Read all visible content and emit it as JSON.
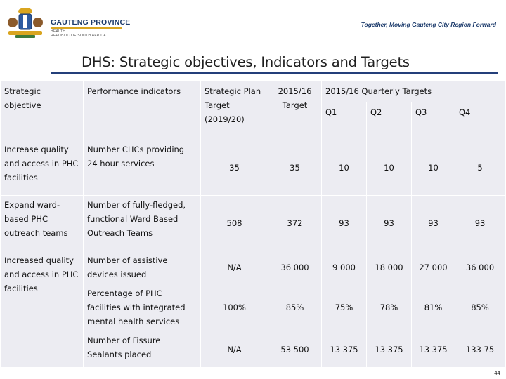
{
  "header": {
    "brand_name": "GAUTENG PROVINCE",
    "brand_sub1": "HEALTH",
    "brand_sub2": "REPUBLIC OF SOUTH AFRICA",
    "tagline": "Together, Moving Gauteng City Region Forward",
    "colors": {
      "brand_blue": "#1b3a6b",
      "gold": "#d9a520"
    }
  },
  "title": "DHS: Strategic objectives, Indicators and Targets",
  "table": {
    "headers": {
      "objective": "Strategic objective",
      "indicator": "Performance indicators",
      "plan_target": "Strategic Plan Target (2019/20)",
      "annual_target": "2015/16 Target",
      "quarterly": "2015/16 Quarterly Targets",
      "q1": "Q1",
      "q2": "Q2",
      "q3": "Q3",
      "q4": "Q4"
    },
    "rows": [
      {
        "objective": "Increase quality and access in PHC facilities",
        "indicator": "Number CHCs providing 24 hour services",
        "plan_target": "35",
        "annual_target": "35",
        "q1": "10",
        "q2": "10",
        "q3": "10",
        "q4": "5"
      },
      {
        "objective": "Expand ward-based PHC outreach teams",
        "indicator": "Number of fully-fledged, functional Ward Based Outreach Teams",
        "plan_target": "508",
        "annual_target": "372",
        "q1": "93",
        "q2": "93",
        "q3": "93",
        "q4": "93"
      },
      {
        "objective": "Increased quality and access in PHC facilities",
        "indicator": "Number of assistive devices issued",
        "plan_target": "N/A",
        "annual_target": "36 000",
        "q1": "9 000",
        "q2": "18 000",
        "q3": "27 000",
        "q4": "36 000"
      },
      {
        "objective": "",
        "indicator": "Percentage of PHC facilities with integrated mental health services",
        "plan_target": "100%",
        "annual_target": "85%",
        "q1": "75%",
        "q2": "78%",
        "q3": "81%",
        "q4": "85%"
      },
      {
        "objective": "",
        "indicator": "Number of Fissure Sealants placed",
        "plan_target": "N/A",
        "annual_target": "53 500",
        "q1": "13 375",
        "q2": "13 375",
        "q3": "13 375",
        "q4": "133 75"
      }
    ]
  },
  "page_number": "44"
}
